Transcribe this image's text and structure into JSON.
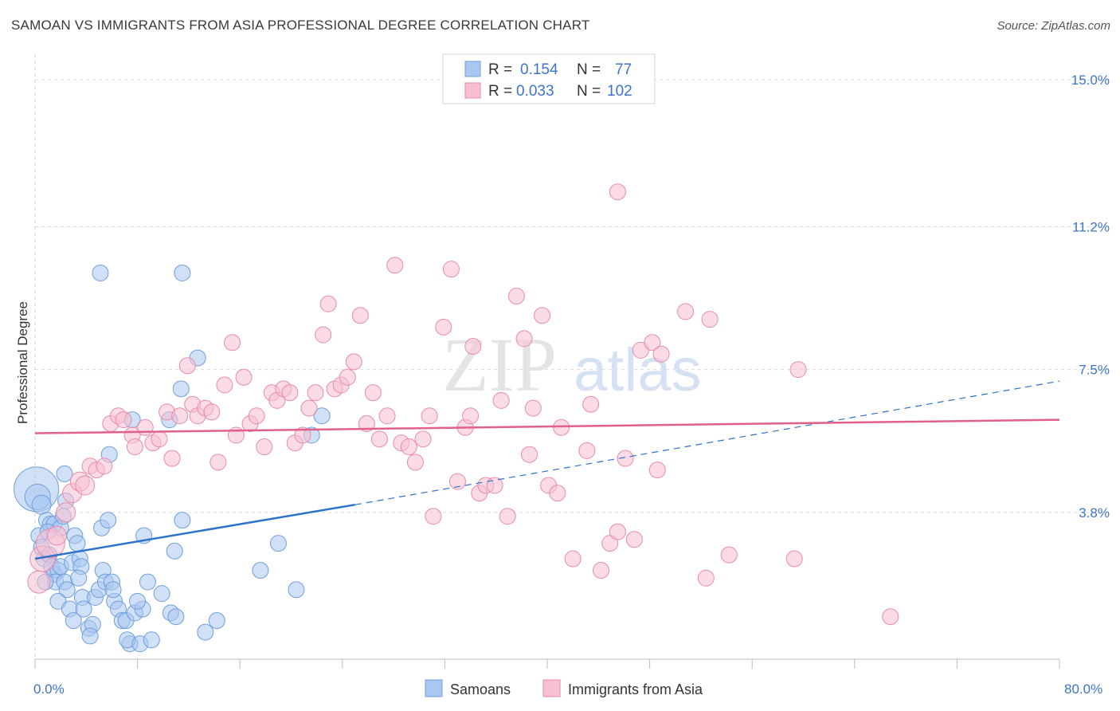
{
  "header": {
    "title": "SAMOAN VS IMMIGRANTS FROM ASIA PROFESSIONAL DEGREE CORRELATION CHART",
    "source": "Source: ZipAtlas.com"
  },
  "colors": {
    "blue_fill": "#a9c7f0",
    "blue_stroke": "#6f9fdc",
    "blue_line": "#2e72cc",
    "pink_fill": "#f7bfd1",
    "pink_stroke": "#e98aa9",
    "pink_line": "#e0608a",
    "tick_text": "#3d74c8",
    "grid": "#d9d9d9"
  },
  "watermark": {
    "zip": "ZIP",
    "atlas": "atlas"
  },
  "legend_top": {
    "rows": [
      {
        "r_label": "R =",
        "r_value": "0.154",
        "n_label": "N =",
        "n_value": "77",
        "series": "blue"
      },
      {
        "r_label": "R =",
        "r_value": "0.033",
        "n_label": "N =",
        "n_value": "102",
        "series": "pink"
      }
    ]
  },
  "chart_data": {
    "type": "scatter",
    "title": "SAMOAN VS IMMIGRANTS FROM ASIA PROFESSIONAL DEGREE CORRELATION CHART",
    "xlabel": "",
    "ylabel": "Professional Degree",
    "xlim": [
      0,
      80
    ],
    "ylim": [
      0,
      15.5
    ],
    "x_tick_labels": [
      "0.0%",
      "80.0%"
    ],
    "y_ticks": [
      3.8,
      7.5,
      11.2,
      15.0
    ],
    "y_tick_labels": [
      "3.8%",
      "7.5%",
      "11.2%",
      "15.0%"
    ],
    "grid": true,
    "legend_position": "bottom-center",
    "series": [
      {
        "name": "Samoans",
        "color": "blue",
        "trend": {
          "x_start": 0,
          "y_start": 2.6,
          "x_end": 25,
          "y_end": 4.0,
          "dash_x_end": 80,
          "dash_y_end": 7.2
        },
        "points": [
          [
            0.1,
            4.4,
            28
          ],
          [
            0.2,
            4.2,
            16
          ],
          [
            0.5,
            4.0,
            12
          ],
          [
            0.3,
            3.2,
            10
          ],
          [
            0.5,
            2.9,
            10
          ],
          [
            0.7,
            2.6,
            10
          ],
          [
            0.9,
            3.6,
            10
          ],
          [
            1.2,
            3.5,
            10
          ],
          [
            1.5,
            3.5,
            10
          ],
          [
            1.1,
            2.7,
            10
          ],
          [
            1.3,
            2.4,
            10
          ],
          [
            1.5,
            2.2,
            10
          ],
          [
            1.8,
            2.3,
            10
          ],
          [
            1.6,
            2.0,
            10
          ],
          [
            2.0,
            3.4,
            10
          ],
          [
            2.2,
            3.7,
            10
          ],
          [
            2.4,
            4.1,
            10
          ],
          [
            2.3,
            4.8,
            10
          ],
          [
            2.0,
            2.4,
            10
          ],
          [
            2.3,
            2.0,
            10
          ],
          [
            2.5,
            1.8,
            10
          ],
          [
            1.8,
            1.5,
            10
          ],
          [
            2.7,
            1.3,
            10
          ],
          [
            2.9,
            2.5,
            10
          ],
          [
            3.1,
            3.2,
            10
          ],
          [
            3.3,
            3.0,
            10
          ],
          [
            3.5,
            2.6,
            10
          ],
          [
            3.6,
            2.4,
            10
          ],
          [
            3.4,
            2.1,
            10
          ],
          [
            3.7,
            1.6,
            10
          ],
          [
            3.8,
            1.3,
            10
          ],
          [
            3.0,
            1.0,
            10
          ],
          [
            4.2,
            0.8,
            10
          ],
          [
            4.5,
            0.9,
            10
          ],
          [
            4.3,
            0.6,
            10
          ],
          [
            4.7,
            1.6,
            10
          ],
          [
            5.0,
            1.8,
            10
          ],
          [
            5.3,
            2.3,
            10
          ],
          [
            5.2,
            3.4,
            10
          ],
          [
            5.7,
            3.6,
            10
          ],
          [
            5.5,
            2.0,
            10
          ],
          [
            6.0,
            2.0,
            10
          ],
          [
            6.2,
            1.5,
            10
          ],
          [
            6.5,
            1.3,
            10
          ],
          [
            6.8,
            1.0,
            10
          ],
          [
            7.1,
            1.0,
            10
          ],
          [
            7.4,
            0.4,
            10
          ],
          [
            7.2,
            0.5,
            10
          ],
          [
            7.8,
            1.2,
            10
          ],
          [
            8.4,
            1.3,
            10
          ],
          [
            8.2,
            0.4,
            10
          ],
          [
            8.0,
            1.5,
            10
          ],
          [
            8.5,
            3.2,
            10
          ],
          [
            7.6,
            6.2,
            10
          ],
          [
            5.1,
            10.0,
            10
          ],
          [
            11.5,
            10.0,
            10
          ],
          [
            10.5,
            6.2,
            10
          ],
          [
            11.4,
            7.0,
            10
          ],
          [
            12.7,
            7.8,
            10
          ],
          [
            11.5,
            3.6,
            10
          ],
          [
            10.9,
            2.8,
            10
          ],
          [
            9.9,
            1.7,
            10
          ],
          [
            10.6,
            1.2,
            10
          ],
          [
            11.0,
            1.1,
            10
          ],
          [
            13.3,
            0.7,
            10
          ],
          [
            14.2,
            1.0,
            10
          ],
          [
            17.6,
            2.3,
            10
          ],
          [
            19.0,
            3.0,
            10
          ],
          [
            20.4,
            1.8,
            10
          ],
          [
            21.6,
            5.8,
            10
          ],
          [
            22.4,
            6.3,
            10
          ],
          [
            8.8,
            2.0,
            10
          ],
          [
            9.1,
            0.5,
            10
          ],
          [
            6.1,
            1.8,
            10
          ],
          [
            5.8,
            5.3,
            10
          ],
          [
            1.0,
            3.3,
            10
          ],
          [
            0.8,
            2.0,
            10
          ]
        ]
      },
      {
        "name": "Immigrants from Asia",
        "color": "pink",
        "trend": {
          "x_start": 0,
          "y_start": 5.85,
          "x_end": 80,
          "y_end": 6.2
        },
        "points": [
          [
            0.3,
            2.0,
            14
          ],
          [
            0.6,
            2.6,
            16
          ],
          [
            1.2,
            3.0,
            18
          ],
          [
            1.7,
            3.2,
            12
          ],
          [
            2.4,
            3.8,
            12
          ],
          [
            2.9,
            4.3,
            12
          ],
          [
            3.5,
            4.6,
            12
          ],
          [
            3.9,
            4.5,
            12
          ],
          [
            4.3,
            5.0,
            10
          ],
          [
            4.8,
            4.9,
            10
          ],
          [
            5.4,
            5.0,
            10
          ],
          [
            5.9,
            6.1,
            10
          ],
          [
            6.5,
            6.3,
            10
          ],
          [
            6.9,
            6.2,
            10
          ],
          [
            7.6,
            5.8,
            10
          ],
          [
            7.8,
            5.5,
            10
          ],
          [
            8.6,
            6.0,
            10
          ],
          [
            9.2,
            5.6,
            10
          ],
          [
            9.7,
            5.7,
            10
          ],
          [
            10.3,
            6.4,
            10
          ],
          [
            10.7,
            5.2,
            10
          ],
          [
            11.3,
            6.3,
            10
          ],
          [
            11.9,
            7.6,
            10
          ],
          [
            12.3,
            6.6,
            10
          ],
          [
            12.7,
            6.3,
            10
          ],
          [
            13.3,
            6.5,
            10
          ],
          [
            13.8,
            6.4,
            10
          ],
          [
            14.3,
            5.1,
            10
          ],
          [
            14.8,
            7.1,
            10
          ],
          [
            15.4,
            8.2,
            10
          ],
          [
            15.7,
            5.8,
            10
          ],
          [
            16.3,
            7.3,
            10
          ],
          [
            16.8,
            6.1,
            10
          ],
          [
            17.3,
            6.3,
            10
          ],
          [
            17.9,
            5.5,
            10
          ],
          [
            18.5,
            6.9,
            10
          ],
          [
            18.9,
            6.7,
            10
          ],
          [
            19.4,
            7.0,
            10
          ],
          [
            19.9,
            6.9,
            10
          ],
          [
            20.3,
            5.6,
            10
          ],
          [
            20.9,
            5.8,
            10
          ],
          [
            21.4,
            6.5,
            10
          ],
          [
            21.9,
            6.9,
            10
          ],
          [
            22.5,
            8.4,
            10
          ],
          [
            22.9,
            9.2,
            10
          ],
          [
            23.4,
            7.0,
            10
          ],
          [
            23.9,
            7.1,
            10
          ],
          [
            24.4,
            7.3,
            10
          ],
          [
            24.9,
            7.7,
            10
          ],
          [
            25.4,
            8.9,
            10
          ],
          [
            25.9,
            6.1,
            10
          ],
          [
            26.4,
            6.9,
            10
          ],
          [
            26.9,
            5.7,
            10
          ],
          [
            27.5,
            6.3,
            10
          ],
          [
            28.1,
            10.2,
            10
          ],
          [
            28.6,
            5.6,
            10
          ],
          [
            29.2,
            5.5,
            10
          ],
          [
            29.7,
            5.1,
            10
          ],
          [
            30.3,
            5.7,
            10
          ],
          [
            31.1,
            3.7,
            10
          ],
          [
            30.8,
            6.3,
            10
          ],
          [
            31.9,
            8.6,
            10
          ],
          [
            32.5,
            10.1,
            10
          ],
          [
            33.0,
            4.6,
            10
          ],
          [
            33.6,
            6.0,
            10
          ],
          [
            34.2,
            8.1,
            10
          ],
          [
            34.0,
            6.3,
            10
          ],
          [
            34.7,
            4.3,
            10
          ],
          [
            35.2,
            4.5,
            10
          ],
          [
            35.9,
            4.5,
            10
          ],
          [
            36.4,
            6.7,
            10
          ],
          [
            36.9,
            3.7,
            10
          ],
          [
            37.6,
            9.4,
            10
          ],
          [
            38.2,
            8.3,
            10
          ],
          [
            38.6,
            5.3,
            10
          ],
          [
            38.9,
            6.5,
            10
          ],
          [
            39.6,
            8.9,
            10
          ],
          [
            40.1,
            4.5,
            10
          ],
          [
            40.8,
            4.3,
            10
          ],
          [
            41.1,
            6.0,
            10
          ],
          [
            42.0,
            2.6,
            10
          ],
          [
            43.1,
            5.4,
            10
          ],
          [
            43.4,
            6.6,
            10
          ],
          [
            44.2,
            2.3,
            10
          ],
          [
            44.9,
            3.0,
            10
          ],
          [
            45.5,
            3.3,
            10
          ],
          [
            46.1,
            5.2,
            10
          ],
          [
            46.8,
            3.1,
            10
          ],
          [
            47.3,
            8.0,
            10
          ],
          [
            48.2,
            8.2,
            10
          ],
          [
            48.9,
            7.9,
            10
          ],
          [
            48.6,
            4.9,
            10
          ],
          [
            50.8,
            9.0,
            10
          ],
          [
            52.4,
            2.1,
            10
          ],
          [
            52.7,
            8.8,
            10
          ],
          [
            54.2,
            2.7,
            10
          ],
          [
            45.5,
            12.1,
            10
          ],
          [
            59.6,
            7.5,
            10
          ],
          [
            59.3,
            2.6,
            10
          ],
          [
            66.8,
            1.1,
            10
          ]
        ]
      }
    ]
  },
  "legend_bottom": {
    "items": [
      {
        "label": "Samoans",
        "series": "blue"
      },
      {
        "label": "Immigrants from Asia",
        "series": "pink"
      }
    ]
  }
}
